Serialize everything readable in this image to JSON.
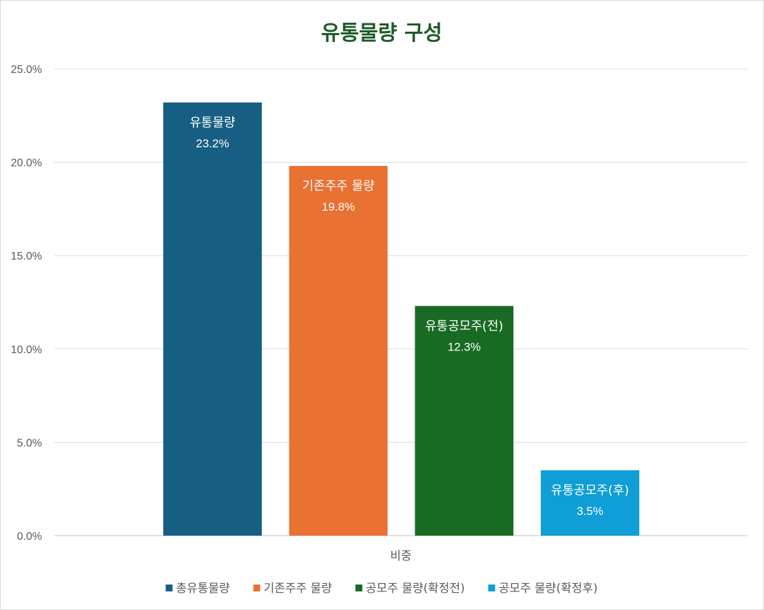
{
  "chart_data": {
    "type": "bar",
    "title": "유통물량 구성",
    "categories": [
      "비중"
    ],
    "y_ticks": [
      "0.0%",
      "5.0%",
      "10.0%",
      "15.0%",
      "20.0%",
      "25.0%"
    ],
    "ylim": [
      0,
      25
    ],
    "grid": true,
    "legend_position": "bottom",
    "series": [
      {
        "name": "총유통물량",
        "label": "유통물량",
        "value": 23.2,
        "value_label": "23.2%",
        "color": "#175f82"
      },
      {
        "name": "기존주주 물량",
        "label": "기존주주 물량",
        "value": 19.8,
        "value_label": "19.8%",
        "color": "#e97132"
      },
      {
        "name": "공모주 물량(확정전)",
        "label": "유통공모주(전)",
        "value": 12.3,
        "value_label": "12.3%",
        "color": "#196b24"
      },
      {
        "name": "공모주 물량(확정후)",
        "label": "유통공모주(후)",
        "value": 3.5,
        "value_label": "3.5%",
        "color": "#0f9ed5"
      }
    ]
  }
}
